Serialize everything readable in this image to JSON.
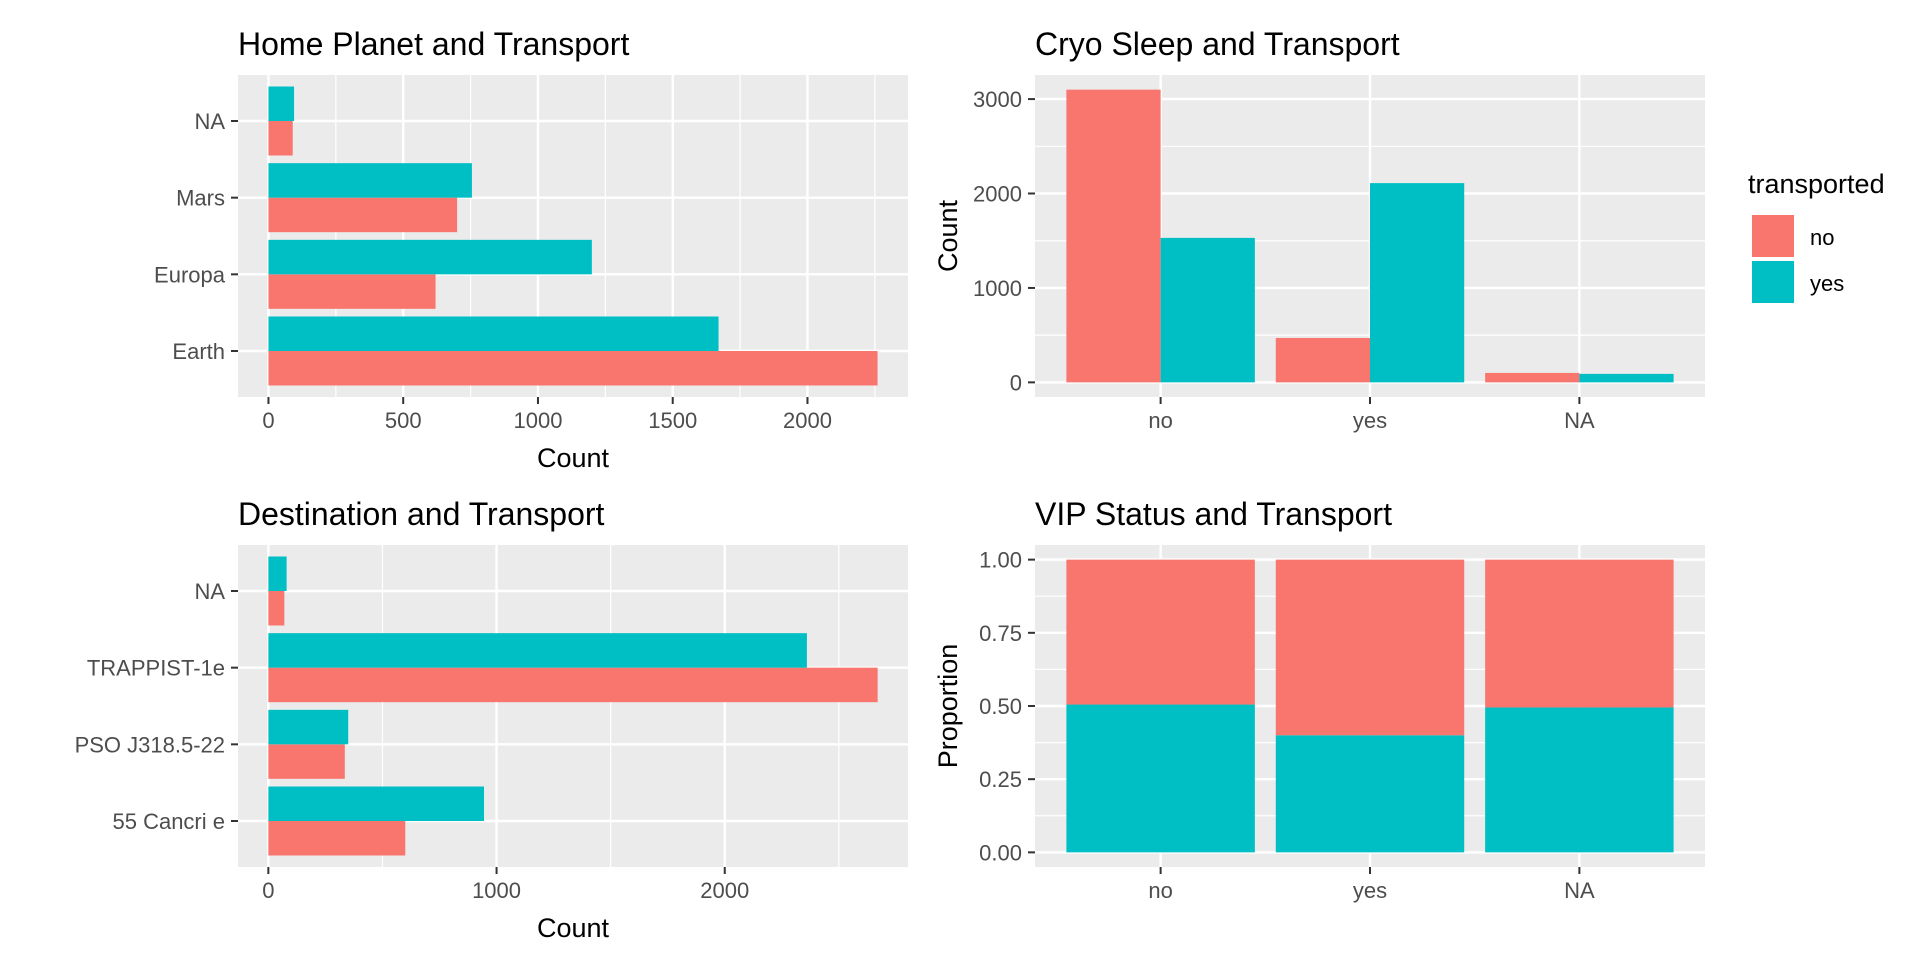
{
  "colors": {
    "no": "#F8766D",
    "yes": "#00BFC4",
    "panel": "#EBEBEB",
    "grid": "#FFFFFF"
  },
  "legend": {
    "title": "transported",
    "items": [
      "no",
      "yes"
    ],
    "placement": "right"
  },
  "chart_data": [
    {
      "type": "bar",
      "orientation": "horizontal",
      "title": "Home Planet and Transport",
      "xlabel": "Count",
      "ylabel": "",
      "categories": [
        "Earth",
        "Europa",
        "Mars",
        "NA"
      ],
      "series": [
        {
          "name": "no",
          "values": [
            2260,
            620,
            700,
            90
          ]
        },
        {
          "name": "yes",
          "values": [
            1670,
            1200,
            755,
            95
          ]
        }
      ],
      "xlim": [
        -113,
        2373
      ],
      "ticks": [
        0,
        500,
        1000,
        1500,
        2000
      ],
      "grid": true
    },
    {
      "type": "bar",
      "orientation": "vertical",
      "title": "Cryo Sleep and Transport",
      "xlabel": "",
      "ylabel": "Count",
      "categories": [
        "no",
        "yes",
        "NA"
      ],
      "series": [
        {
          "name": "no",
          "values": [
            3100,
            470,
            100
          ]
        },
        {
          "name": "yes",
          "values": [
            1530,
            2110,
            90
          ]
        }
      ],
      "ylim": [
        -155,
        3255
      ],
      "ticks": [
        0,
        1000,
        2000,
        3000
      ],
      "grid": true
    },
    {
      "type": "bar",
      "orientation": "horizontal",
      "title": "Destination and Transport",
      "xlabel": "Count",
      "ylabel": "",
      "categories": [
        "55 Cancri e",
        "PSO J318.5-22",
        "TRAPPIST-1e",
        "NA"
      ],
      "series": [
        {
          "name": "no",
          "values": [
            600,
            335,
            2670,
            70
          ]
        },
        {
          "name": "yes",
          "values": [
            945,
            350,
            2360,
            80
          ]
        }
      ],
      "xlim": [
        -133,
        2803
      ],
      "ticks": [
        0,
        1000,
        2000
      ],
      "grid": true
    },
    {
      "type": "bar",
      "orientation": "vertical",
      "stacked": "fill",
      "title": "VIP Status and Transport",
      "xlabel": "",
      "ylabel": "Proportion",
      "categories": [
        "no",
        "yes",
        "NA"
      ],
      "series": [
        {
          "name": "no",
          "values": [
            0.495,
            0.6,
            0.505
          ]
        },
        {
          "name": "yes",
          "values": [
            0.505,
            0.4,
            0.495
          ]
        }
      ],
      "ylim": [
        -0.05,
        1.05
      ],
      "ticks": [
        "0.00",
        "0.25",
        "0.50",
        "0.75",
        "1.00"
      ],
      "grid": true
    }
  ]
}
